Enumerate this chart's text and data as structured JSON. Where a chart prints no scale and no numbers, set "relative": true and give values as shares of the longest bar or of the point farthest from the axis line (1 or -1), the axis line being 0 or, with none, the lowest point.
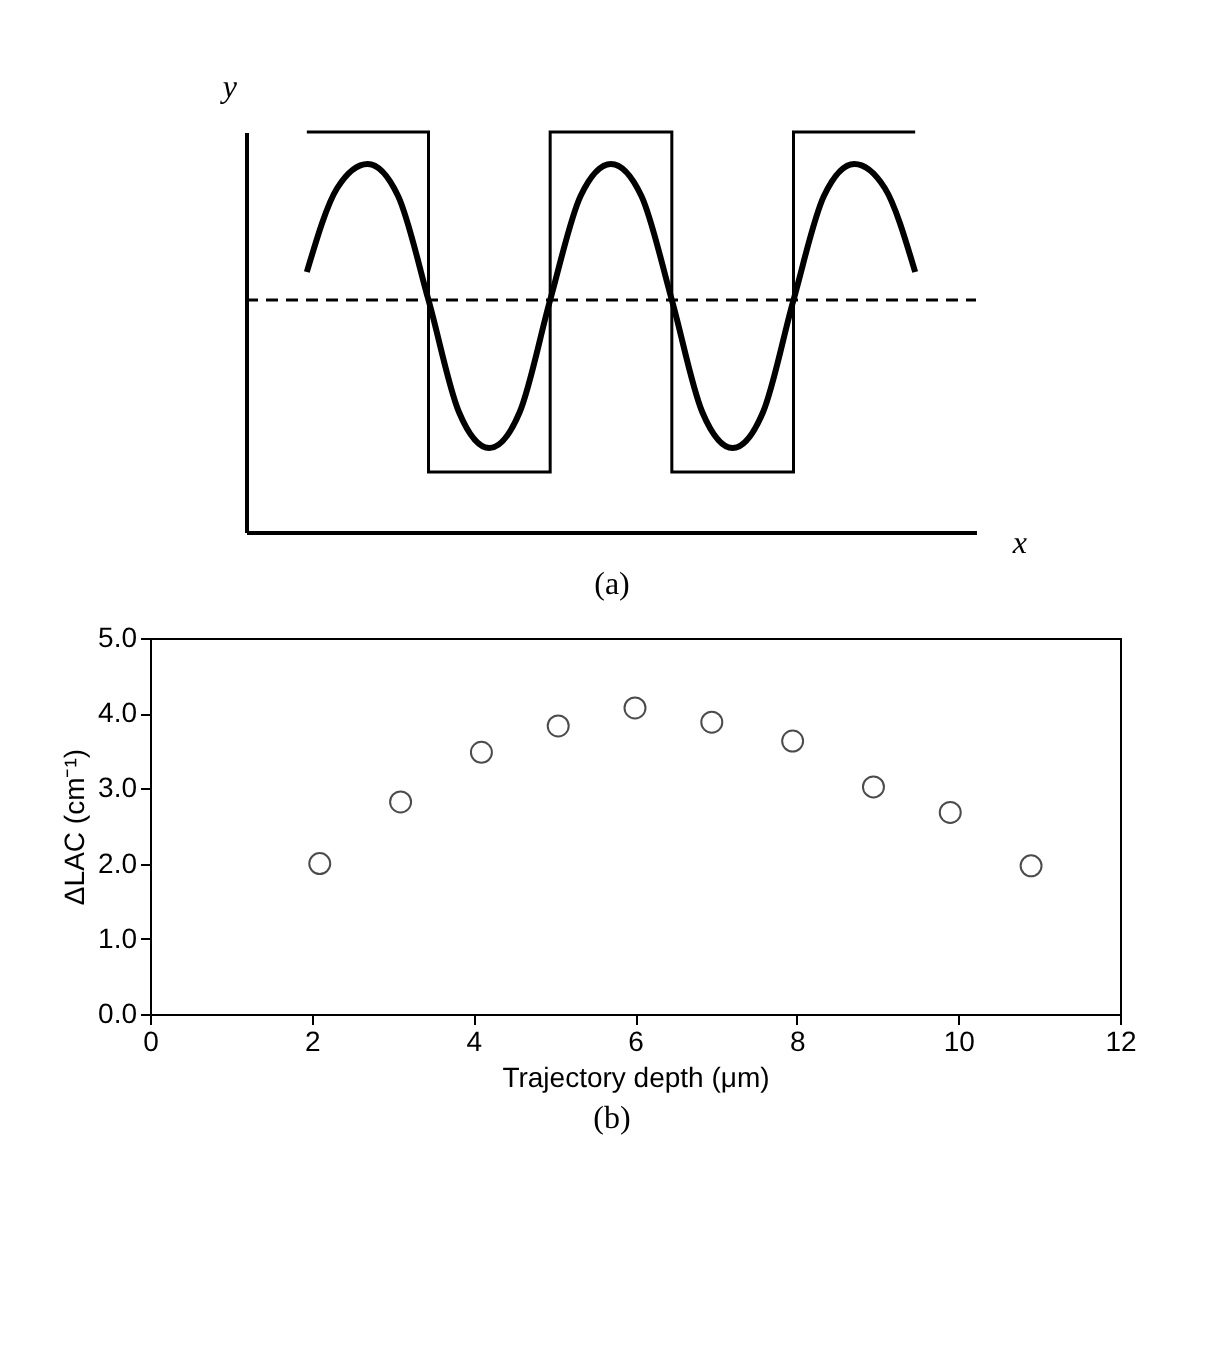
{
  "chart_data": [
    {
      "type": "line",
      "relative": true,
      "xlabel": "x",
      "ylabel": "y",
      "grid": false,
      "annotations": [
        "(a)"
      ],
      "categories": [
        null,
        null,
        null,
        null,
        null,
        null,
        null,
        null,
        null,
        null,
        null,
        null,
        null,
        null,
        null,
        null,
        null,
        null,
        null,
        null,
        null,
        null,
        null,
        null,
        null
      ],
      "series": [
        {
          "type": "step",
          "color": "#000000",
          "values": [
            null,
            null,
            1,
            1,
            1,
            1,
            0.15,
            0.15,
            0.15,
            0.15,
            1,
            1,
            1,
            1,
            0.15,
            0.15,
            0.15,
            0.15,
            1,
            1,
            1,
            1,
            1,
            null,
            null
          ]
        },
        {
          "color": "#000000",
          "values": [
            null,
            null,
            0.65,
            0.86,
            0.92,
            0.84,
            0.58,
            0.3,
            0.21,
            0.3,
            0.58,
            0.84,
            0.92,
            0.84,
            0.58,
            0.3,
            0.21,
            0.3,
            0.58,
            0.84,
            0.92,
            0.86,
            0.65,
            null,
            null
          ]
        },
        {
          "line_style": "dashed",
          "color": "#000000",
          "values": [
            0.58,
            0.58,
            0.58,
            0.58,
            0.58,
            0.58,
            0.58,
            0.58,
            0.58,
            0.58,
            0.58,
            0.58,
            0.58,
            0.58,
            0.58,
            0.58,
            0.58,
            0.58,
            0.58,
            0.58,
            0.58,
            0.58,
            0.58,
            0.58,
            0.58
          ]
        }
      ]
    },
    {
      "type": "scatter",
      "xlabel": "Trajectory depth (μm)",
      "ylabel": "ΔLAC (cm⁻¹)",
      "marker": "circle",
      "grid": false,
      "annotations": [
        "(b)"
      ],
      "x": [
        2.1,
        3.1,
        4.1,
        5.05,
        6,
        6.95,
        7.95,
        8.95,
        9.9,
        10.9
      ],
      "series": [
        {
          "color": "#000000",
          "values": [
            2.0,
            2.82,
            3.48,
            3.83,
            4.07,
            3.88,
            3.63,
            3.02,
            2.68,
            1.97
          ]
        }
      ],
      "xlim": [
        0,
        12
      ],
      "xticks": [
        0,
        2,
        4,
        6,
        8,
        10,
        12
      ],
      "ylim": [
        0,
        5
      ],
      "yticks": [
        {
          "value": 0,
          "label": "0.0"
        },
        {
          "value": 1,
          "label": "1.0"
        },
        {
          "value": 2,
          "label": "2.0"
        },
        {
          "value": 3,
          "label": "3.0"
        },
        {
          "value": 4,
          "label": "4.0"
        },
        {
          "value": 5,
          "label": "5.0"
        }
      ]
    }
  ]
}
